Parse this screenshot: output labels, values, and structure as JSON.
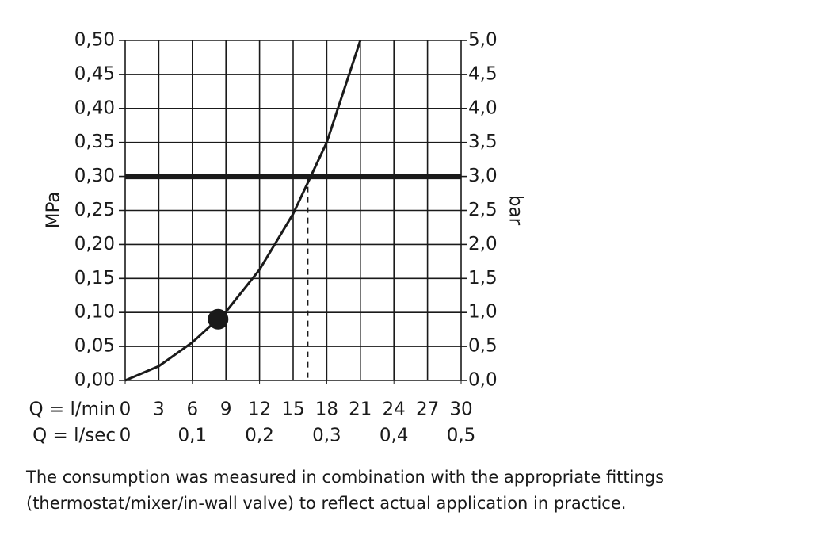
{
  "chart_data": {
    "type": "line",
    "ylabel": "MPa",
    "y2label": "bar",
    "xlabel": "Q = l/min",
    "x2label": "Q = l/sec",
    "x": [
      0,
      3,
      6,
      9,
      12,
      15,
      18,
      21
    ],
    "series": [
      {
        "color": "#1a1a1a",
        "values": [
          0,
          0.021,
          0.056,
          0.101,
          0.163,
          0.245,
          0.35,
          0.5
        ]
      }
    ],
    "xlim": [
      0,
      30
    ],
    "xticks": [
      0,
      3,
      6,
      9,
      12,
      15,
      18,
      21,
      24,
      27,
      30
    ],
    "x2lim": [
      0,
      0.5
    ],
    "x2ticks": [
      0,
      {
        "value": 0.1,
        "label": "0,1"
      },
      {
        "value": 0.2,
        "label": "0,2"
      },
      {
        "value": 0.3,
        "label": "0,3"
      },
      {
        "value": 0.4,
        "label": "0,4"
      },
      {
        "value": 0.5,
        "label": "0,5"
      }
    ],
    "ylim": [
      0,
      0.5
    ],
    "yticks": [
      {
        "value": 0,
        "label": "0,00"
      },
      {
        "value": 0.05,
        "label": "0,05"
      },
      {
        "value": 0.1,
        "label": "0,10"
      },
      {
        "value": 0.15,
        "label": "0,15"
      },
      {
        "value": 0.2,
        "label": "0,20"
      },
      {
        "value": 0.25,
        "label": "0,25"
      },
      {
        "value": 0.3,
        "label": "0,30"
      },
      {
        "value": 0.35,
        "label": "0,35"
      },
      {
        "value": 0.4,
        "label": "0,40"
      },
      {
        "value": 0.45,
        "label": "0,45"
      },
      {
        "value": 0.5,
        "label": "0,50"
      }
    ],
    "y2lim": [
      0,
      5
    ],
    "y2ticks": [
      {
        "value": 0,
        "label": "0,0"
      },
      {
        "value": 0.5,
        "label": "0,5"
      },
      {
        "value": 1,
        "label": "1,0"
      },
      {
        "value": 1.5,
        "label": "1,5"
      },
      {
        "value": 2,
        "label": "2,0"
      },
      {
        "value": 2.5,
        "label": "2,5"
      },
      {
        "value": 3,
        "label": "3,0"
      },
      {
        "value": 3.5,
        "label": "3,5"
      },
      {
        "value": 4,
        "label": "4,0"
      },
      {
        "value": 4.5,
        "label": "4,5"
      },
      {
        "value": 5,
        "label": "5,0"
      }
    ],
    "grid": true,
    "reference_line": 0.3,
    "marker_x": 16.3,
    "point": {
      "x": 8.3,
      "y": 0.09
    },
    "footnote": "The consumption was measured in combination with the appropriate fittings (thermostat/mixer/in-wall valve) to reflect actual application in practice."
  }
}
